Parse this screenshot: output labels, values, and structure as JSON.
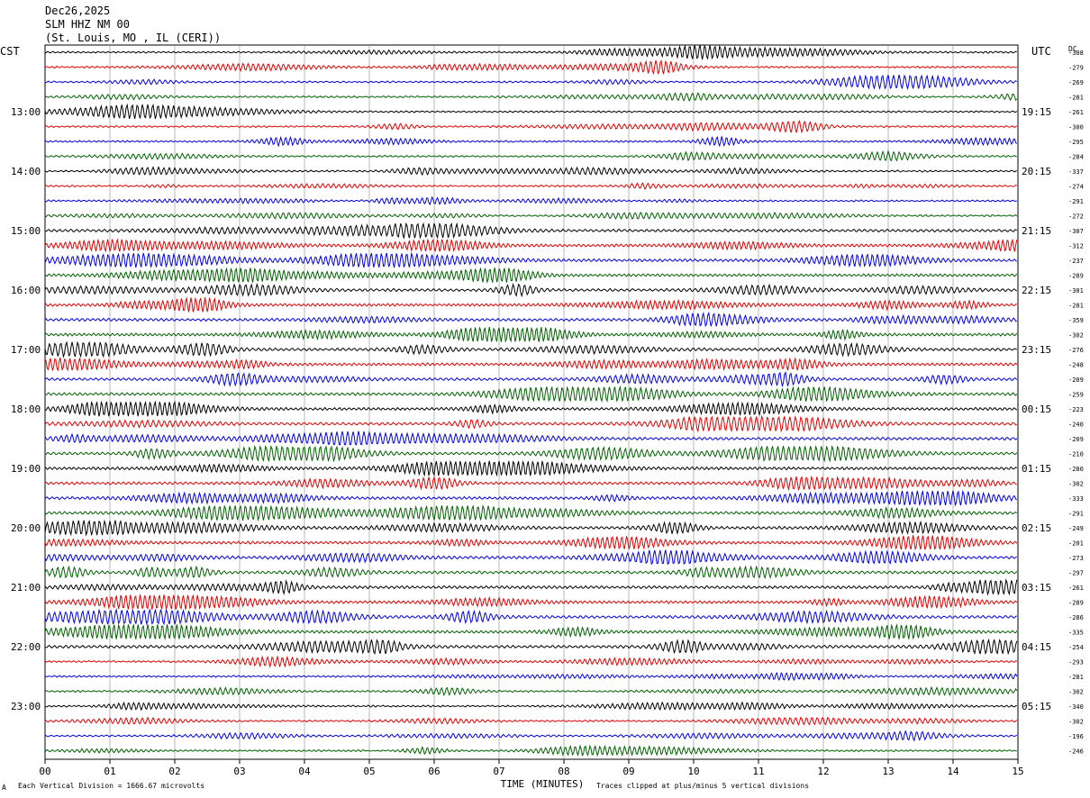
{
  "header": {
    "date": "Dec26,2025",
    "station": "SLM HHZ NM 00",
    "location": "(St. Louis, MO , IL (CERI))"
  },
  "left_zone": "CST",
  "right_zone": "UTC",
  "dc_label": "DC",
  "colors": {
    "traces": [
      "#000000",
      "#e00000",
      "#0000e0",
      "#006000"
    ],
    "grid": "#888888"
  },
  "footer": {
    "left_note": "Each Vertical Division = 1666.67 microvolts",
    "right_note": "Traces clipped at plus/minus 5 vertical divisions",
    "corner_mark": "A"
  },
  "chart_data": {
    "type": "line",
    "title": "",
    "xlabel": "TIME (MINUTES)",
    "x_ticks": [
      "00",
      "01",
      "02",
      "03",
      "04",
      "05",
      "06",
      "07",
      "08",
      "09",
      "10",
      "11",
      "12",
      "13",
      "14",
      "15"
    ],
    "xlim": [
      0,
      15
    ],
    "left_time_labels": [
      "13:00",
      "14:00",
      "15:00",
      "16:00",
      "17:00",
      "18:00",
      "19:00",
      "20:00",
      "21:00",
      "22:00",
      "23:00"
    ],
    "right_time_labels": [
      "19:15",
      "20:15",
      "21:15",
      "22:15",
      "23:15",
      "00:15",
      "01:15",
      "02:15",
      "03:15",
      "04:15",
      "05:15"
    ],
    "trace_count": 48,
    "first_label_trace_index": 4,
    "traces_per_hour": 4,
    "dc_offsets": [
      "-308",
      "-279",
      "-269",
      "-281",
      "-261",
      "-300",
      "-295",
      "-284",
      "-337",
      "-274",
      "-291",
      "-272",
      "-307",
      "-312",
      "-237",
      "-289",
      "-301",
      "-281",
      "-359",
      "-302",
      "-276",
      "-248",
      "-209",
      "-259",
      "-223",
      "-240",
      "-209",
      "-210",
      "-280",
      "-302",
      "-333",
      "-291",
      "-249",
      "-201",
      "-273",
      "-297",
      "-261",
      "-289",
      "-286",
      "-335",
      "-254",
      "-293",
      "-281",
      "-302",
      "-340",
      "-302",
      "-196",
      "-246"
    ],
    "grid": true
  }
}
